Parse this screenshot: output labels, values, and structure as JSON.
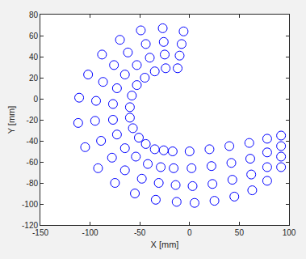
{
  "chart_data": {
    "type": "scatter",
    "xlabel": "X [mm]",
    "ylabel": "Y [mm]",
    "color": "#0000ff",
    "marker": "circle-open",
    "grid": false,
    "xlim": [
      -150,
      100
    ],
    "ylim": [
      -120,
      80
    ],
    "xticks": [
      -150,
      -100,
      -50,
      0,
      50,
      100
    ],
    "yticks": [
      -120,
      -100,
      -80,
      -60,
      -40,
      -20,
      0,
      20,
      40,
      60,
      80
    ],
    "x": [
      -12,
      -10,
      -8,
      -6,
      -24,
      -25,
      -26,
      -27,
      -35,
      -40,
      -44,
      -49,
      -45,
      -53,
      -62,
      -70,
      -53,
      -65,
      -76,
      -88,
      -58,
      -73,
      -87,
      -102,
      -60,
      -77,
      -94,
      -111,
      -60,
      -77,
      -95,
      -112,
      -57,
      -73,
      -89,
      -105,
      -51,
      -65,
      -78,
      -92,
      -44,
      -54,
      -65,
      -75,
      -35,
      -42,
      -48,
      -55,
      -26,
      -29,
      -31,
      -34,
      -17,
      -16,
      -14,
      -13,
      0,
      2,
      3,
      5,
      20,
      22,
      23,
      25,
      40,
      42,
      43,
      45,
      60,
      61,
      62,
      63,
      78,
      78,
      78,
      78,
      92,
      92,
      92,
      92
    ],
    "values": [
      29,
      41,
      52,
      64,
      29,
      42,
      54,
      67,
      26,
      39,
      52,
      65,
      20,
      32,
      44,
      56,
      13,
      23,
      32,
      42,
      3,
      10,
      16,
      23,
      -8,
      -5,
      -2,
      1,
      -18,
      -20,
      -21,
      -23,
      -28,
      -34,
      -40,
      -46,
      -37,
      -47,
      -56,
      -66,
      -43,
      -55,
      -68,
      -80,
      -48,
      -62,
      -76,
      -90,
      -49,
      -65,
      -80,
      -96,
      -50,
      -66,
      -82,
      -98,
      -50,
      -66,
      -83,
      -99,
      -48,
      -64,
      -81,
      -97,
      -45,
      -61,
      -77,
      -93,
      -42,
      -57,
      -72,
      -87,
      -38,
      -51,
      -65,
      -78,
      -35,
      -45,
      -55,
      -65
    ]
  }
}
